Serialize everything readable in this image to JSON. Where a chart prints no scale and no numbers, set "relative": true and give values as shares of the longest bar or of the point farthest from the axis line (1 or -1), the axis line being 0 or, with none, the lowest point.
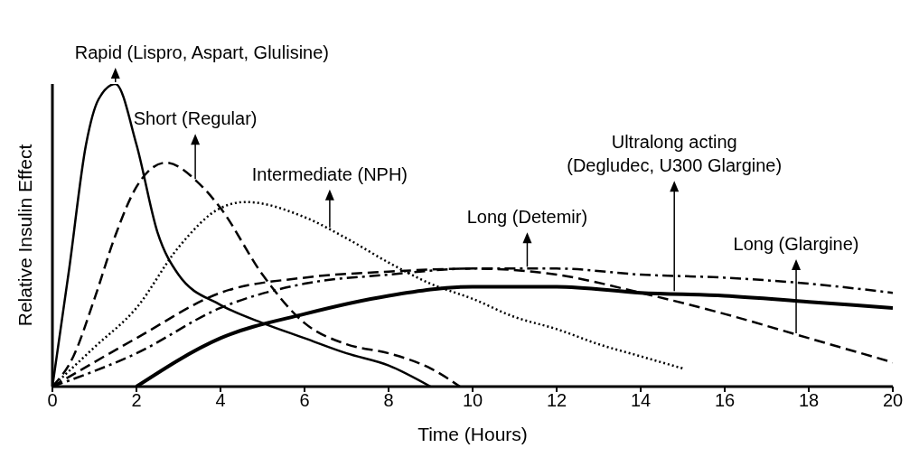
{
  "chart_data": {
    "type": "line",
    "relative": true,
    "xlabel": "Time (Hours)",
    "ylabel": "Relative Insulin Effect",
    "xlim": [
      0,
      20
    ],
    "xticks": [
      0,
      2,
      4,
      6,
      8,
      10,
      12,
      14,
      16,
      18,
      20
    ],
    "grid": false,
    "legend": false,
    "marker": "none",
    "series": [
      {
        "color": "#000000",
        "line_style": "solid",
        "x": [
          0,
          0.4,
          0.8,
          1.1,
          1.5,
          2,
          2.5,
          3,
          4,
          5,
          6,
          7,
          8,
          9
        ],
        "values": [
          0,
          0.39,
          0.8,
          0.95,
          1,
          0.8,
          0.51,
          0.37,
          0.27,
          0.21,
          0.16,
          0.11,
          0.07,
          0
        ]
      },
      {
        "color": "#000000",
        "line_style": "dashed",
        "x": [
          0,
          0.5,
          1,
          1.5,
          2,
          2.7,
          3.5,
          4,
          5,
          6,
          7,
          8,
          9,
          9.7
        ],
        "values": [
          0,
          0.1,
          0.29,
          0.5,
          0.66,
          0.74,
          0.67,
          0.59,
          0.37,
          0.21,
          0.14,
          0.11,
          0.06,
          0
        ]
      },
      {
        "color": "#000000",
        "line_style": "dotted",
        "x": [
          0,
          1,
          2,
          3,
          4,
          4.6,
          6,
          7,
          8,
          9,
          10,
          11,
          12,
          13,
          14,
          15
        ],
        "values": [
          0,
          0.13,
          0.26,
          0.46,
          0.59,
          0.61,
          0.56,
          0.49,
          0.41,
          0.34,
          0.29,
          0.23,
          0.19,
          0.14,
          0.1,
          0.06
        ]
      },
      {
        "color": "#000000",
        "line_style": "dashed",
        "x": [
          0,
          2,
          4,
          6,
          8,
          10,
          12,
          14,
          16,
          18,
          20
        ],
        "values": [
          0,
          0.16,
          0.31,
          0.36,
          0.38,
          0.39,
          0.37,
          0.31,
          0.24,
          0.16,
          0.08
        ]
      },
      {
        "color": "#000000",
        "line_style": "dashdot",
        "x": [
          0,
          2,
          4,
          6,
          8,
          10,
          12,
          14,
          16,
          18,
          20
        ],
        "values": [
          0,
          0.11,
          0.26,
          0.34,
          0.37,
          0.39,
          0.39,
          0.37,
          0.36,
          0.34,
          0.31
        ]
      },
      {
        "color": "#000000",
        "line_style": "solid",
        "x": [
          2,
          4,
          6,
          8,
          10,
          12,
          14,
          16,
          18,
          20
        ],
        "values": [
          0,
          0.16,
          0.24,
          0.3,
          0.33,
          0.33,
          0.31,
          0.3,
          0.28,
          0.26
        ]
      }
    ],
    "annotations": [
      {
        "text": "Rapid (Lispro, Aspart, Glulisine)",
        "x": 1.5,
        "y": 1
      },
      {
        "text": "Short (Regular)",
        "x": 3.4,
        "y": 0.68
      },
      {
        "text": "Intermediate (NPH)",
        "x": 6.6,
        "y": 0.52
      },
      {
        "text": "Long (Detemir)",
        "x": 11.3,
        "y": 0.39
      },
      {
        "text": "Ultralong acting (Degludec, U300 Glargine)",
        "x": 14.8,
        "y": 0.31
      },
      {
        "text": "Long (Glargine)",
        "x": 17.7,
        "y": 0.17
      }
    ]
  }
}
